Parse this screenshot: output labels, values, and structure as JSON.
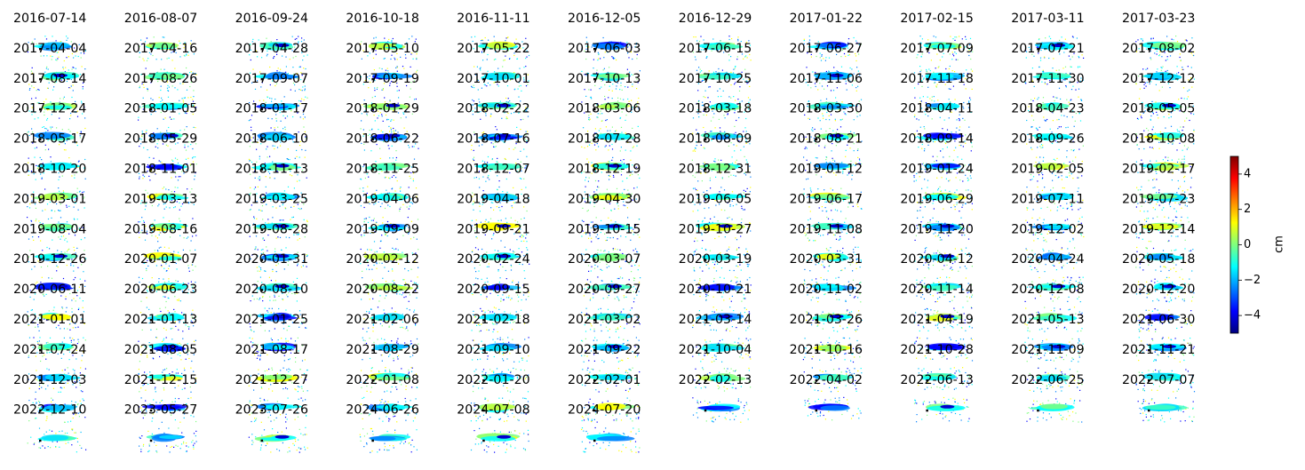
{
  "chart_data": {
    "type": "heatmap",
    "dates": [
      "2016-07-14",
      "2016-08-07",
      "2016-09-24",
      "2016-10-18",
      "2016-11-11",
      "2016-12-05",
      "2016-12-29",
      "2017-01-22",
      "2017-02-15",
      "2017-03-11",
      "2017-03-23",
      "2017-04-04",
      "2017-04-16",
      "2017-04-28",
      "2017-05-10",
      "2017-05-22",
      "2017-06-03",
      "2017-06-15",
      "2017-06-27",
      "2017-07-09",
      "2017-07-21",
      "2017-08-02",
      "2017-08-14",
      "2017-08-26",
      "2017-09-07",
      "2017-09-19",
      "2017-10-01",
      "2017-10-13",
      "2017-10-25",
      "2017-11-06",
      "2017-11-18",
      "2017-11-30",
      "2017-12-12",
      "2017-12-24",
      "2018-01-05",
      "2018-01-17",
      "2018-01-29",
      "2018-02-22",
      "2018-03-06",
      "2018-03-18",
      "2018-03-30",
      "2018-04-11",
      "2018-04-23",
      "2018-05-05",
      "2018-05-17",
      "2018-05-29",
      "2018-06-10",
      "2018-06-22",
      "2018-07-16",
      "2018-07-28",
      "2018-08-09",
      "2018-08-21",
      "2018-09-14",
      "2018-09-26",
      "2018-10-08",
      "2018-10-20",
      "2018-11-01",
      "2018-11-13",
      "2018-11-25",
      "2018-12-07",
      "2018-12-19",
      "2018-12-31",
      "2019-01-12",
      "2019-01-24",
      "2019-02-05",
      "2019-02-17",
      "2019-03-01",
      "2019-03-13",
      "2019-03-25",
      "2019-04-06",
      "2019-04-18",
      "2019-04-30",
      "2019-06-05",
      "2019-06-17",
      "2019-06-29",
      "2019-07-11",
      "2019-07-23",
      "2019-08-04",
      "2019-08-16",
      "2019-08-28",
      "2019-09-09",
      "2019-09-21",
      "2019-10-15",
      "2019-10-27",
      "2019-11-08",
      "2019-11-20",
      "2019-12-02",
      "2019-12-14",
      "2019-12-26",
      "2020-01-07",
      "2020-01-31",
      "2020-02-12",
      "2020-02-24",
      "2020-03-07",
      "2020-03-19",
      "2020-03-31",
      "2020-04-12",
      "2020-04-24",
      "2020-05-18",
      "2020-06-11",
      "2020-06-23",
      "2020-08-10",
      "2020-08-22",
      "2020-09-15",
      "2020-09-27",
      "2020-10-21",
      "2020-11-02",
      "2020-11-14",
      "2020-12-08",
      "2020-12-20",
      "2021-01-01",
      "2021-01-13",
      "2021-01-25",
      "2021-02-06",
      "2021-02-18",
      "2021-03-02",
      "2021-03-14",
      "2021-03-26",
      "2021-04-19",
      "2021-05-13",
      "2021-06-30",
      "2021-07-24",
      "2021-08-05",
      "2021-08-17",
      "2021-08-29",
      "2021-09-10",
      "2021-09-22",
      "2021-10-04",
      "2021-10-16",
      "2021-10-28",
      "2021-11-09",
      "2021-11-21",
      "2021-12-03",
      "2021-12-15",
      "2021-12-27",
      "2022-01-08",
      "2022-01-20",
      "2022-02-01",
      "2022-02-13",
      "2022-04-02",
      "2022-06-13",
      "2022-06-25",
      "2022-07-07",
      "2022-12-10",
      "2023-05-27",
      "2023-07-26",
      "2024-06-26",
      "2024-07-08",
      "2024-07-20"
    ],
    "colorbar": {
      "label": "cm",
      "vmin": -5,
      "vmax": 5,
      "ticks": [
        4,
        2,
        0,
        -2,
        -4
      ],
      "tick_labels": [
        "4",
        "2",
        "0",
        "−2",
        "−4"
      ],
      "colormap": "jet"
    },
    "colors": {
      "jet": [
        "#00007f",
        "#0000ff",
        "#007fff",
        "#00ffff",
        "#7fff7f",
        "#ffff00",
        "#ff7f00",
        "#ff0000",
        "#7f0000"
      ]
    }
  }
}
